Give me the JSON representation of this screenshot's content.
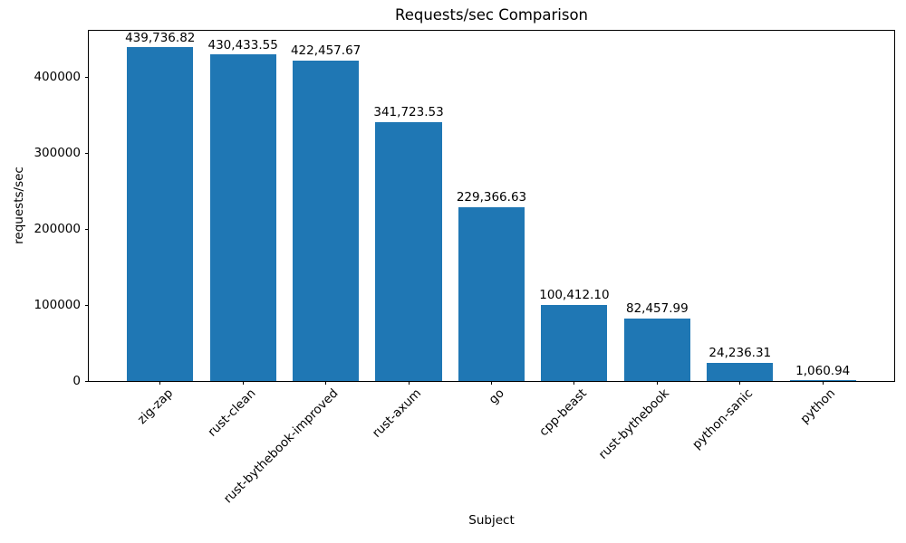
{
  "chart_data": {
    "type": "bar",
    "title": "Requests/sec Comparison",
    "xlabel": "Subject",
    "ylabel": "requests/sec",
    "categories": [
      "zig-zap",
      "rust-clean",
      "rust-bythebook-improved",
      "rust-axum",
      "go",
      "cpp-beast",
      "rust-bythebook",
      "python-sanic",
      "python"
    ],
    "values": [
      439736.82,
      430433.55,
      422457.67,
      341723.53,
      229366.63,
      100412.1,
      82457.99,
      24236.31,
      1060.94
    ],
    "value_labels": [
      "439,736.82",
      "430,433.55",
      "422,457.67",
      "341,723.53",
      "229,366.63",
      "100,412.10",
      "82,457.99",
      "24,236.31",
      "1,060.94"
    ],
    "ylim": [
      0,
      461724
    ],
    "yticks": [
      0,
      100000,
      200000,
      300000,
      400000
    ],
    "ytick_labels": [
      "0",
      "100000",
      "200000",
      "300000",
      "400000"
    ],
    "bar_color": "#1f77b4",
    "axis_color": "#000000",
    "background_color": "#ffffff",
    "grid": false,
    "legend_position": "none",
    "xtick_rotation_deg": 45
  }
}
